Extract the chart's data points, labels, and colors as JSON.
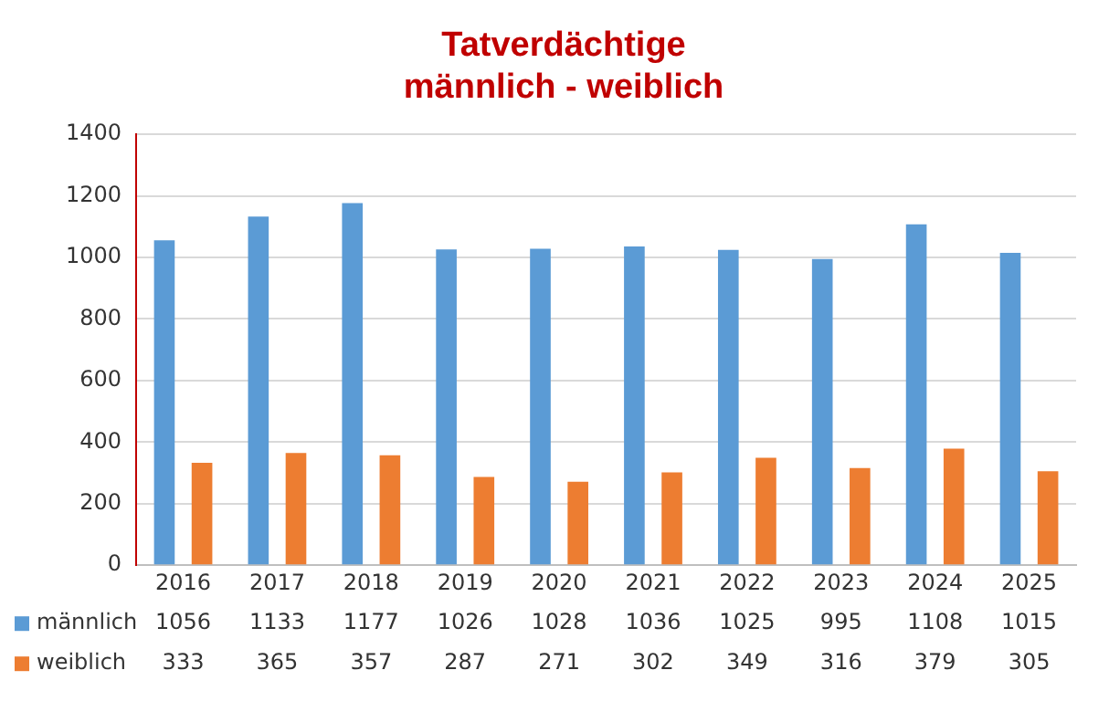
{
  "chart_data": {
    "type": "bar",
    "title": "Tatverdächtige",
    "subtitle": "männlich - weiblich",
    "categories": [
      "2016",
      "2017",
      "2018",
      "2019",
      "2020",
      "2021",
      "2022",
      "2023",
      "2024",
      "2025"
    ],
    "series": [
      {
        "name": "männlich",
        "color": "#5b9bd5",
        "values": [
          1056,
          1133,
          1177,
          1026,
          1028,
          1036,
          1025,
          995,
          1108,
          1015
        ]
      },
      {
        "name": "weiblich",
        "color": "#ed7d31",
        "values": [
          333,
          365,
          357,
          287,
          271,
          302,
          349,
          316,
          379,
          305
        ]
      }
    ],
    "ylim": [
      0,
      1400
    ],
    "yticks": [
      0,
      200,
      400,
      600,
      800,
      1000,
      1200,
      1400
    ],
    "grid": "y",
    "legend": "bottom left",
    "data_labels": true
  }
}
